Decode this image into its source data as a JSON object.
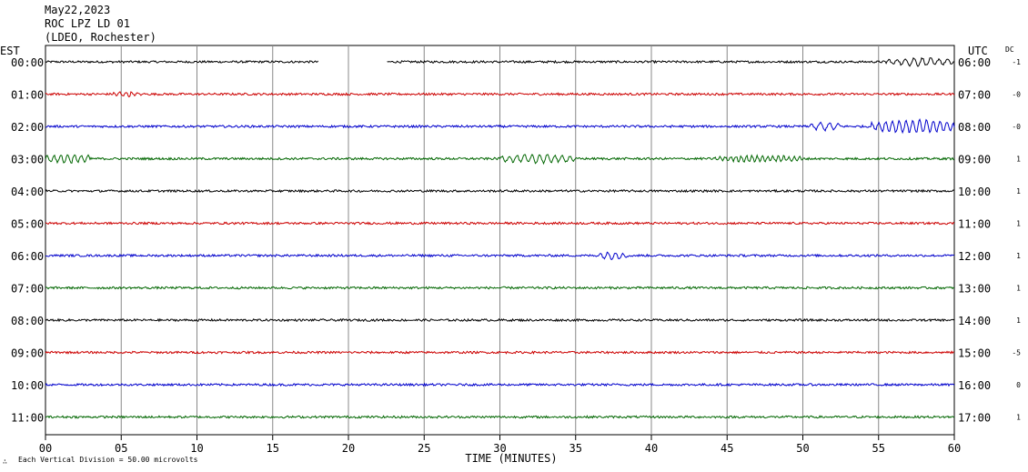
{
  "header": {
    "date": "May22,2023",
    "station": "ROC LPZ LD 01",
    "network": "(LDEO, Rochester)"
  },
  "footer": {
    "scale_note": "Each Vertical Division =   50.00 microvolts"
  },
  "chart_data": {
    "type": "line",
    "title": "ROC LPZ LD 01",
    "xlabel": "TIME (MINUTES)",
    "xlim": [
      0,
      60
    ],
    "x_ticks": [
      "00",
      "05",
      "10",
      "15",
      "20",
      "25",
      "30",
      "35",
      "40",
      "45",
      "50",
      "55",
      "60"
    ],
    "left_axis_title": "EST",
    "right_axis_title": "UTC",
    "dc_title": "DC",
    "grid": true,
    "colors": [
      "#000000",
      "#cc0000",
      "#0000cc",
      "#006600"
    ],
    "rows": [
      {
        "est": "00:00",
        "utc": "06:00",
        "dc": "-1",
        "color": "#000000",
        "gap": [
          18.0,
          22.5
        ],
        "events": [
          {
            "start": 55.5,
            "end": 60,
            "amp": 4,
            "period": 0.55
          }
        ]
      },
      {
        "est": "01:00",
        "utc": "07:00",
        "dc": "-0",
        "color": "#cc0000",
        "events": [
          {
            "start": 4.5,
            "end": 6.5,
            "amp": 2.5,
            "period": 0.4
          }
        ]
      },
      {
        "est": "02:00",
        "utc": "08:00",
        "dc": "-0",
        "color": "#0000cc",
        "events": [
          {
            "start": 50.3,
            "end": 52.5,
            "amp": 4,
            "period": 0.6
          },
          {
            "start": 54.5,
            "end": 60,
            "amp": 7,
            "period": 0.45
          }
        ]
      },
      {
        "est": "03:00",
        "utc": "09:00",
        "dc": "1",
        "color": "#006600",
        "events": [
          {
            "start": 0,
            "end": 3,
            "amp": 5,
            "period": 0.45
          },
          {
            "start": 30,
            "end": 35,
            "amp": 4.5,
            "period": 0.5
          },
          {
            "start": 44,
            "end": 50,
            "amp": 3,
            "period": 0.35
          }
        ]
      },
      {
        "est": "04:00",
        "utc": "10:00",
        "dc": "1",
        "color": "#000000",
        "events": []
      },
      {
        "est": "05:00",
        "utc": "11:00",
        "dc": "1",
        "color": "#cc0000",
        "events": []
      },
      {
        "est": "06:00",
        "utc": "12:00",
        "dc": "1",
        "color": "#0000cc",
        "events": [
          {
            "start": 36.5,
            "end": 38.5,
            "amp": 3.5,
            "period": 0.5
          }
        ]
      },
      {
        "est": "07:00",
        "utc": "13:00",
        "dc": "1",
        "color": "#006600",
        "events": []
      },
      {
        "est": "08:00",
        "utc": "14:00",
        "dc": "1",
        "color": "#000000",
        "events": []
      },
      {
        "est": "09:00",
        "utc": "15:00",
        "dc": "-5",
        "color": "#cc0000",
        "events": []
      },
      {
        "est": "10:00",
        "utc": "16:00",
        "dc": "0",
        "color": "#0000cc",
        "events": []
      },
      {
        "est": "11:00",
        "utc": "17:00",
        "dc": "1",
        "color": "#006600",
        "events": []
      }
    ]
  }
}
